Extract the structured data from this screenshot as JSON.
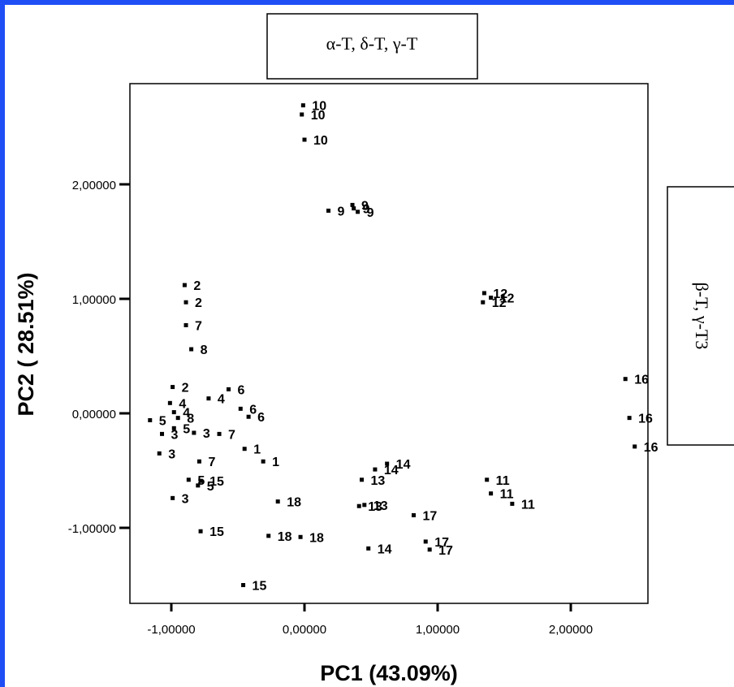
{
  "chart_data": {
    "type": "scatter",
    "title": "",
    "xlabel": "PC1 (43.09%)",
    "ylabel": "PC2 ( 28.51%)",
    "xlim": [
      -1.3,
      2.5
    ],
    "ylim": [
      -1.65,
      2.9
    ],
    "xticks": [
      {
        "value": -1,
        "label": "-1,00000"
      },
      {
        "value": 0,
        "label": "0,00000"
      },
      {
        "value": 1,
        "label": "1,00000"
      },
      {
        "value": 2,
        "label": "2,00000"
      }
    ],
    "yticks": [
      {
        "value": -1,
        "label": "-1,00000"
      },
      {
        "value": 0,
        "label": "0,00000"
      },
      {
        "value": 1,
        "label": "1,00000"
      },
      {
        "value": 2,
        "label": "2,00000"
      }
    ],
    "annotations": [
      {
        "text": "α-T, δ-T, γ-T",
        "orientation": "horizontal",
        "position": "top"
      },
      {
        "text": "β-T, γ-T3",
        "orientation": "vertical",
        "position": "right"
      }
    ],
    "points": [
      {
        "x": -0.01,
        "y": 2.69,
        "label": "10"
      },
      {
        "x": -0.02,
        "y": 2.61,
        "label": "10"
      },
      {
        "x": 0.0,
        "y": 2.39,
        "label": "10"
      },
      {
        "x": 0.18,
        "y": 1.77,
        "label": "9"
      },
      {
        "x": 0.36,
        "y": 1.82,
        "label": "9"
      },
      {
        "x": 0.37,
        "y": 1.79,
        "label": "9"
      },
      {
        "x": 0.4,
        "y": 1.76,
        "label": "9"
      },
      {
        "x": -0.9,
        "y": 1.12,
        "label": "2"
      },
      {
        "x": -0.89,
        "y": 0.97,
        "label": "2"
      },
      {
        "x": -0.89,
        "y": 0.77,
        "label": "7"
      },
      {
        "x": -0.85,
        "y": 0.56,
        "label": "8"
      },
      {
        "x": -0.99,
        "y": 0.23,
        "label": "2"
      },
      {
        "x": -0.57,
        "y": 0.21,
        "label": "6"
      },
      {
        "x": -0.72,
        "y": 0.13,
        "label": "4"
      },
      {
        "x": -1.01,
        "y": 0.09,
        "label": "4"
      },
      {
        "x": -0.48,
        "y": 0.04,
        "label": "6"
      },
      {
        "x": -0.42,
        "y": -0.03,
        "label": "6"
      },
      {
        "x": -0.98,
        "y": 0.01,
        "label": "4"
      },
      {
        "x": -0.95,
        "y": -0.04,
        "label": "8"
      },
      {
        "x": -1.16,
        "y": -0.06,
        "label": "5"
      },
      {
        "x": -0.98,
        "y": -0.13,
        "label": "5"
      },
      {
        "x": -1.07,
        "y": -0.18,
        "label": "3"
      },
      {
        "x": -0.83,
        "y": -0.17,
        "label": "3"
      },
      {
        "x": -0.64,
        "y": -0.18,
        "label": "7"
      },
      {
        "x": -0.45,
        "y": -0.31,
        "label": "1"
      },
      {
        "x": -1.09,
        "y": -0.35,
        "label": "3"
      },
      {
        "x": -0.79,
        "y": -0.42,
        "label": "7"
      },
      {
        "x": -0.31,
        "y": -0.42,
        "label": "1"
      },
      {
        "x": -0.87,
        "y": -0.58,
        "label": "5"
      },
      {
        "x": -0.78,
        "y": -0.59,
        "label": "15"
      },
      {
        "x": -0.8,
        "y": -0.63,
        "label": "5"
      },
      {
        "x": -0.99,
        "y": -0.74,
        "label": "3"
      },
      {
        "x": -0.78,
        "y": -1.03,
        "label": "15"
      },
      {
        "x": -0.46,
        "y": -1.5,
        "label": "15"
      },
      {
        "x": -0.2,
        "y": -0.77,
        "label": "18"
      },
      {
        "x": -0.27,
        "y": -1.07,
        "label": "18"
      },
      {
        "x": -0.03,
        "y": -1.08,
        "label": "18"
      },
      {
        "x": 0.43,
        "y": -0.58,
        "label": "13"
      },
      {
        "x": 0.41,
        "y": -0.81,
        "label": "13"
      },
      {
        "x": 0.45,
        "y": -0.8,
        "label": "13"
      },
      {
        "x": 0.53,
        "y": -0.49,
        "label": "14"
      },
      {
        "x": 0.62,
        "y": -0.44,
        "label": "14"
      },
      {
        "x": 0.48,
        "y": -1.18,
        "label": "14"
      },
      {
        "x": 0.82,
        "y": -0.89,
        "label": "17"
      },
      {
        "x": 0.91,
        "y": -1.12,
        "label": "17"
      },
      {
        "x": 0.94,
        "y": -1.19,
        "label": "17"
      },
      {
        "x": 1.35,
        "y": 1.05,
        "label": "12"
      },
      {
        "x": 1.34,
        "y": 0.97,
        "label": "12"
      },
      {
        "x": 1.4,
        "y": 1.01,
        "label": "12"
      },
      {
        "x": 1.37,
        "y": -0.58,
        "label": "11"
      },
      {
        "x": 1.4,
        "y": -0.7,
        "label": "11"
      },
      {
        "x": 1.56,
        "y": -0.79,
        "label": "11"
      },
      {
        "x": 2.41,
        "y": 0.3,
        "label": "16"
      },
      {
        "x": 2.44,
        "y": -0.04,
        "label": "16"
      },
      {
        "x": 2.48,
        "y": -0.29,
        "label": "16"
      }
    ]
  }
}
